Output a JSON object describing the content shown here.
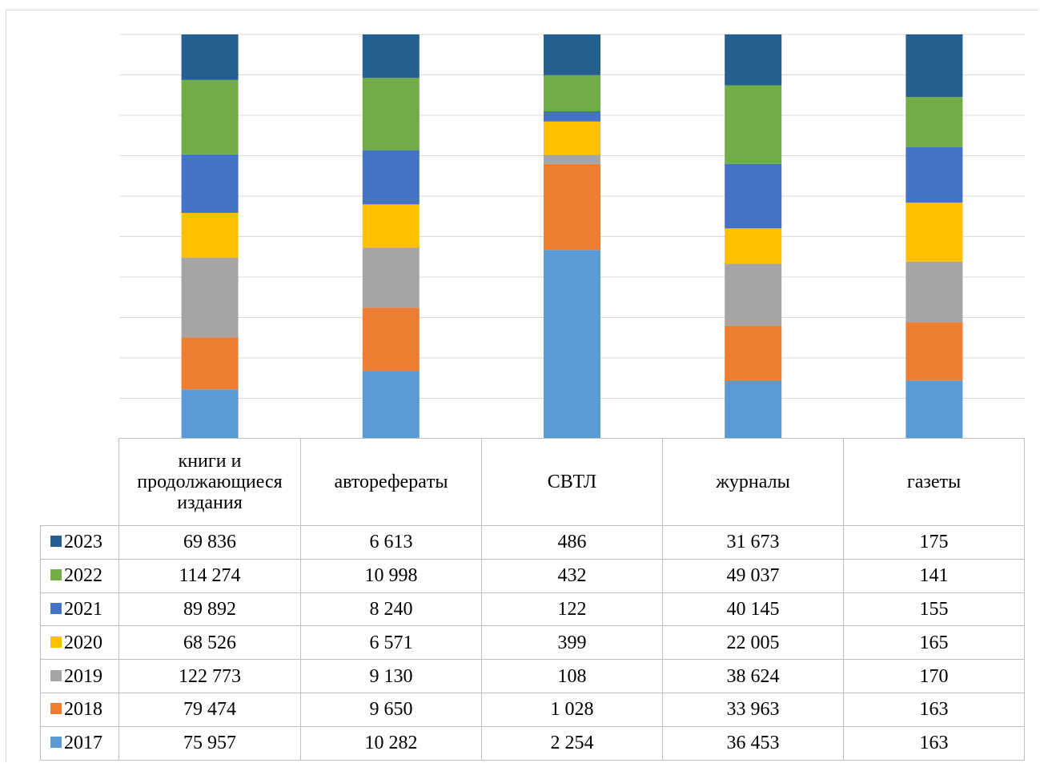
{
  "chart_data": {
    "type": "bar",
    "stacked": "percent",
    "grid": true,
    "legend": "left, inside data table",
    "categories": [
      "книги и продолжающиеся издания",
      "автореферaты",
      "СВТЛ",
      "журналы",
      "газеты"
    ],
    "series": [
      {
        "name": "2023",
        "color": "#255e91",
        "values": [
          69836,
          6613,
          486,
          31673,
          175
        ],
        "labels": [
          "69 836",
          "6 613",
          "486",
          "31 673",
          "175"
        ]
      },
      {
        "name": "2022",
        "color": "#70ad47",
        "values": [
          114274,
          10998,
          432,
          49037,
          141
        ],
        "labels": [
          "114 274",
          "10 998",
          "432",
          "49 037",
          "141"
        ]
      },
      {
        "name": "2021",
        "color": "#4472c4",
        "values": [
          89892,
          8240,
          122,
          40145,
          155
        ],
        "labels": [
          "89 892",
          "8 240",
          "122",
          "40 145",
          "155"
        ]
      },
      {
        "name": "2020",
        "color": "#ffc000",
        "values": [
          68526,
          6571,
          399,
          22005,
          165
        ],
        "labels": [
          "68 526",
          "6 571",
          "399",
          "22 005",
          "165"
        ]
      },
      {
        "name": "2019",
        "color": "#a5a5a5",
        "values": [
          122773,
          9130,
          108,
          38624,
          170
        ],
        "labels": [
          "122 773",
          "9 130",
          "108",
          "38 624",
          "170"
        ]
      },
      {
        "name": "2018",
        "color": "#ed7d31",
        "values": [
          79474,
          9650,
          1028,
          33963,
          163
        ],
        "labels": [
          "79 474",
          "9 650",
          "1 028",
          "33 963",
          "163"
        ]
      },
      {
        "name": "2017",
        "color": "#5b9bd5",
        "values": [
          75957,
          10282,
          2254,
          36453,
          163
        ],
        "labels": [
          "75 957",
          "10 282",
          "2 254",
          "36 453",
          "163"
        ]
      }
    ]
  }
}
